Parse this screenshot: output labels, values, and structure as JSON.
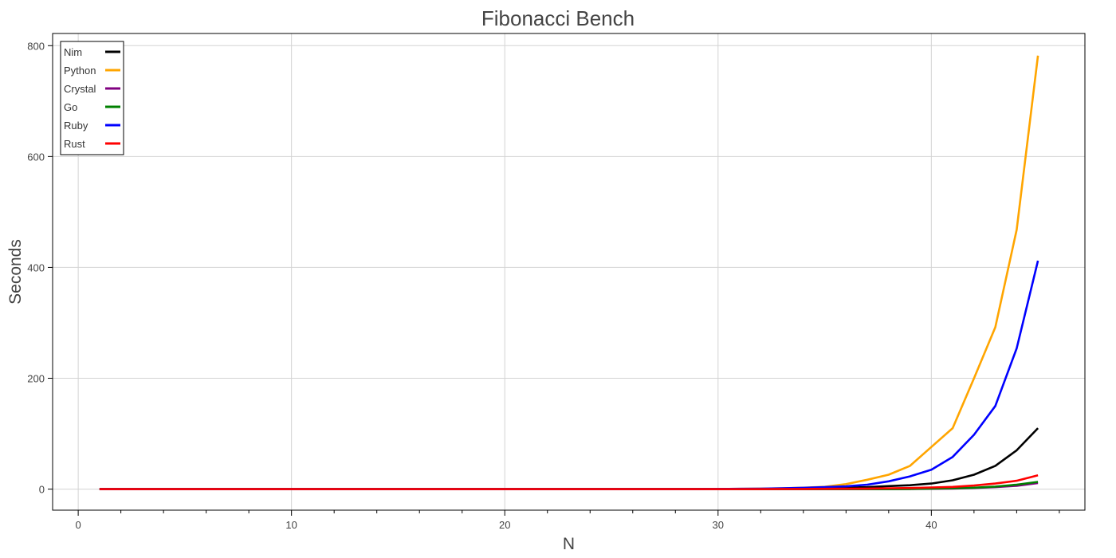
{
  "chart_data": {
    "type": "line",
    "title": "Fibonacci Bench",
    "xlabel": "N",
    "ylabel": "Seconds",
    "xlim": [
      -1.2,
      47.2
    ],
    "ylim": [
      -38,
      822
    ],
    "x_ticks": [
      0,
      10,
      20,
      30,
      40
    ],
    "y_ticks": [
      0,
      200,
      400,
      600,
      800
    ],
    "x_minor_step": 2,
    "grid": true,
    "legend_position": "top-left",
    "x": [
      1,
      2,
      3,
      4,
      5,
      6,
      7,
      8,
      9,
      10,
      11,
      12,
      13,
      14,
      15,
      16,
      17,
      18,
      19,
      20,
      21,
      22,
      23,
      24,
      25,
      26,
      27,
      28,
      29,
      30,
      31,
      32,
      33,
      34,
      35,
      36,
      37,
      38,
      39,
      40,
      41,
      42,
      43,
      44,
      45
    ],
    "series": [
      {
        "name": "Nim",
        "color": "#000000",
        "values": [
          0,
          0,
          0,
          0,
          0,
          0,
          0,
          0,
          0,
          0,
          0,
          0,
          0,
          0,
          0,
          0,
          0,
          0,
          0,
          0,
          0,
          0,
          0,
          0,
          0,
          0,
          0,
          0,
          0,
          0,
          0.2,
          0.4,
          0.6,
          1,
          1.6,
          2.5,
          3.6,
          5.5,
          7,
          10,
          16,
          26,
          42,
          70,
          110
        ]
      },
      {
        "name": "Python",
        "color": "#ffa500",
        "values": [
          0,
          0,
          0,
          0,
          0,
          0,
          0,
          0,
          0,
          0,
          0,
          0,
          0,
          0,
          0,
          0,
          0,
          0,
          0,
          0,
          0,
          0,
          0,
          0,
          0,
          0,
          0,
          0,
          0,
          0.3,
          0.6,
          1,
          1.6,
          2.6,
          4.2,
          9,
          17,
          26,
          42,
          76,
          110,
          200,
          292,
          468,
          782
        ]
      },
      {
        "name": "Crystal",
        "color": "#800080",
        "values": [
          0,
          0,
          0,
          0,
          0,
          0,
          0,
          0,
          0,
          0,
          0,
          0,
          0,
          0,
          0,
          0,
          0,
          0,
          0,
          0,
          0,
          0,
          0,
          0,
          0,
          0,
          0,
          0,
          0,
          0,
          0,
          0,
          0,
          0,
          0,
          0,
          0,
          0,
          0.2,
          0.5,
          1,
          2,
          3.5,
          6,
          11
        ]
      },
      {
        "name": "Go",
        "color": "#008000",
        "values": [
          0,
          0,
          0,
          0,
          0,
          0,
          0,
          0,
          0,
          0,
          0,
          0,
          0,
          0,
          0,
          0,
          0,
          0,
          0,
          0,
          0,
          0,
          0,
          0,
          0,
          0,
          0,
          0,
          0,
          0,
          0,
          0,
          0,
          0,
          0,
          0,
          0,
          0,
          0.3,
          0.8,
          1.5,
          2.5,
          4.5,
          8,
          13
        ]
      },
      {
        "name": "Ruby",
        "color": "#0000ff",
        "values": [
          0,
          0,
          0,
          0,
          0,
          0,
          0,
          0,
          0,
          0,
          0,
          0,
          0,
          0,
          0,
          0,
          0,
          0,
          0,
          0,
          0,
          0,
          0,
          0,
          0,
          0,
          0,
          0,
          0,
          0.2,
          0.5,
          0.9,
          1.5,
          2.4,
          3.6,
          5,
          8,
          14,
          23,
          35,
          58,
          98,
          150,
          254,
          412
        ]
      },
      {
        "name": "Rust",
        "color": "#ff0000",
        "values": [
          0,
          0,
          0,
          0,
          0,
          0,
          0,
          0,
          0,
          0,
          0,
          0,
          0,
          0,
          0,
          0,
          0,
          0,
          0,
          0,
          0,
          0,
          0,
          0,
          0,
          0,
          0,
          0,
          0,
          0,
          0,
          0,
          0.2,
          0.3,
          0.5,
          0.7,
          1,
          1.5,
          2,
          3,
          4,
          6.5,
          10,
          15,
          25
        ]
      }
    ]
  }
}
